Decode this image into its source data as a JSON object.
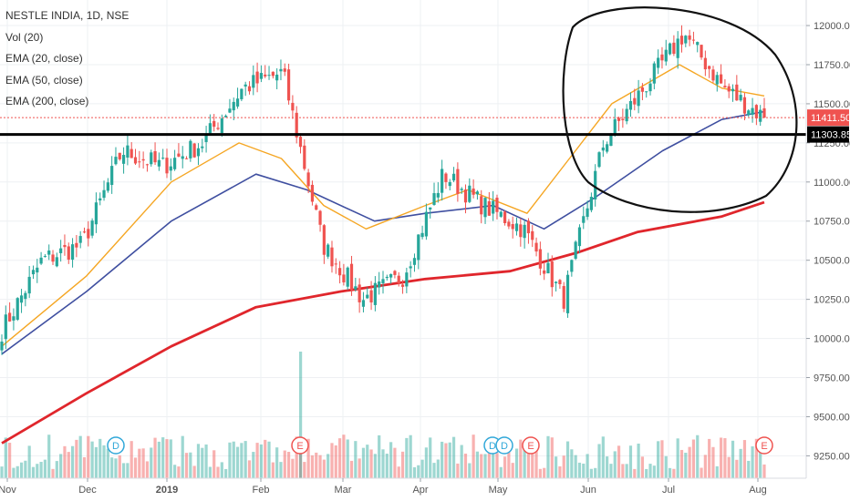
{
  "legend": {
    "symbol": "NESTLE INDIA, 1D, NSE",
    "vol": "Vol (20)",
    "ema20": "EMA (20, close)",
    "ema50": "EMA (50, close)",
    "ema200": "EMA (200, close)"
  },
  "colors": {
    "up": "#26a69a",
    "down": "#ef5350",
    "ema20": "#f5a623",
    "ema50": "#3f4fa0",
    "ema200": "#e0262c",
    "support_line": "#000000",
    "last_price": "#ef5350"
  },
  "chart_data": {
    "type": "candlestick",
    "title": "NESTLE INDIA, 1D, NSE",
    "ylim": [
      9130,
      12140
    ],
    "y_ticks": [
      "12000.00",
      "11750.00",
      "11500.00",
      "11250.00",
      "11000.00",
      "10750.00",
      "10500.00",
      "10250.00",
      "10000.00",
      "9750.00",
      "9500.00",
      "9250.00"
    ],
    "x_ticks": [
      "Nov",
      "Dec",
      "2019",
      "Feb",
      "Mar",
      "Apr",
      "May",
      "Jun",
      "Jul",
      "Aug"
    ],
    "price_labels": {
      "last": "11411.50",
      "support": "11303.85"
    },
    "support_level": 11303.85,
    "events": [
      {
        "label": "D",
        "month": "Dec"
      },
      {
        "label": "E",
        "month": "Feb"
      },
      {
        "label": "D",
        "month": "May"
      },
      {
        "label": "D",
        "month": "May"
      },
      {
        "label": "E",
        "month": "May"
      },
      {
        "label": "E",
        "month": "Aug"
      }
    ],
    "close_anchors": [
      {
        "x": "Nov",
        "close": 10050
      },
      {
        "x": "Nov mid",
        "close": 10500
      },
      {
        "x": "Dec",
        "close": 10600
      },
      {
        "x": "Dec mid",
        "close": 11200
      },
      {
        "x": "2019",
        "close": 11100
      },
      {
        "x": "Jan mid",
        "close": 11250
      },
      {
        "x": "Feb",
        "close": 11600
      },
      {
        "x": "Feb peak",
        "close": 11700
      },
      {
        "x": "Feb mid",
        "close": 10600
      },
      {
        "x": "Mar",
        "close": 10250
      },
      {
        "x": "Mar mid",
        "close": 10400
      },
      {
        "x": "Apr",
        "close": 11050
      },
      {
        "x": "Apr mid",
        "close": 10850
      },
      {
        "x": "May",
        "close": 10700
      },
      {
        "x": "May mid",
        "close": 10250
      },
      {
        "x": "Jun",
        "close": 11250
      },
      {
        "x": "Jun mid",
        "close": 11600
      },
      {
        "x": "Jul",
        "close": 11950
      },
      {
        "x": "Jul mid",
        "close": 11600
      },
      {
        "x": "Aug",
        "close": 11411.5
      }
    ],
    "ema20_anchors": [
      [
        0,
        9950
      ],
      [
        0.1,
        10400
      ],
      [
        0.2,
        11000
      ],
      [
        0.28,
        11250
      ],
      [
        0.33,
        11150
      ],
      [
        0.38,
        10850
      ],
      [
        0.43,
        10700
      ],
      [
        0.5,
        10850
      ],
      [
        0.55,
        10950
      ],
      [
        0.62,
        10800
      ],
      [
        0.67,
        11150
      ],
      [
        0.72,
        11500
      ],
      [
        0.8,
        11750
      ],
      [
        0.85,
        11600
      ],
      [
        0.9,
        11550
      ]
    ],
    "ema50_anchors": [
      [
        0,
        9900
      ],
      [
        0.1,
        10300
      ],
      [
        0.2,
        10750
      ],
      [
        0.3,
        11050
      ],
      [
        0.36,
        10950
      ],
      [
        0.44,
        10750
      ],
      [
        0.5,
        10800
      ],
      [
        0.58,
        10850
      ],
      [
        0.64,
        10700
      ],
      [
        0.7,
        10900
      ],
      [
        0.78,
        11200
      ],
      [
        0.85,
        11400
      ],
      [
        0.9,
        11450
      ]
    ],
    "ema200_anchors": [
      [
        0,
        9330
      ],
      [
        0.1,
        9650
      ],
      [
        0.2,
        9950
      ],
      [
        0.3,
        10200
      ],
      [
        0.4,
        10300
      ],
      [
        0.5,
        10380
      ],
      [
        0.6,
        10430
      ],
      [
        0.68,
        10550
      ],
      [
        0.75,
        10680
      ],
      [
        0.85,
        10780
      ],
      [
        0.9,
        10870
      ]
    ]
  }
}
